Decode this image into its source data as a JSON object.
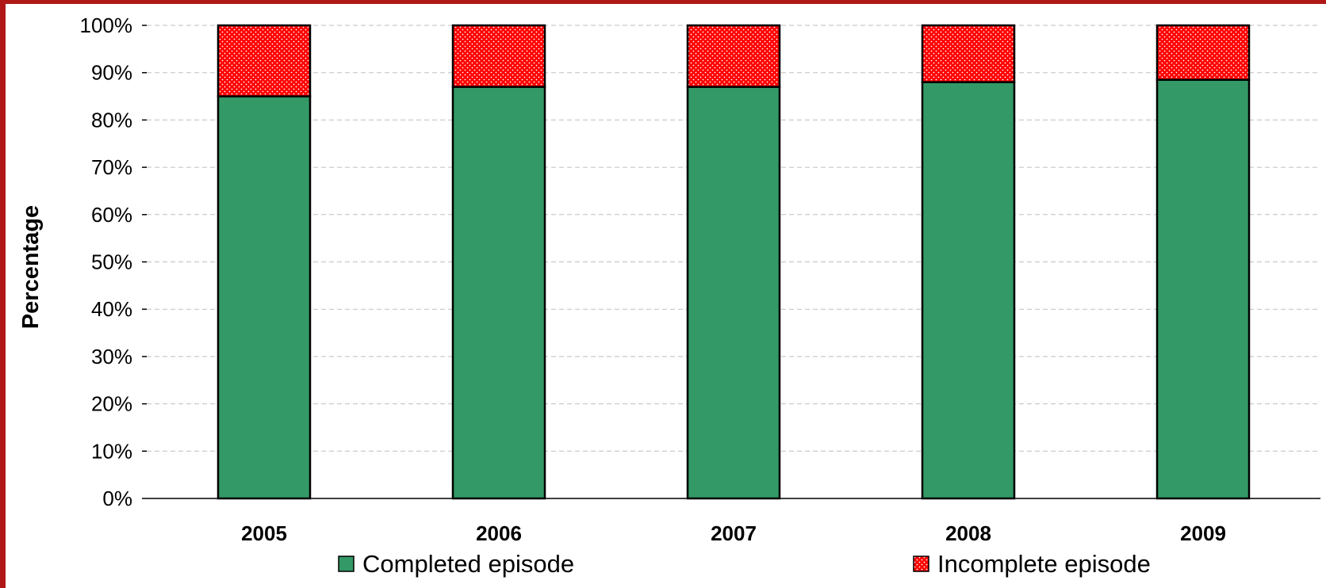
{
  "chart_data": {
    "type": "bar",
    "stacked": true,
    "categories": [
      "2005",
      "2006",
      "2007",
      "2008",
      "2009"
    ],
    "series": [
      {
        "name": "Completed episode",
        "values": [
          85,
          87,
          87,
          88,
          88.5
        ],
        "color": "#339966"
      },
      {
        "name": "Incomplete episode",
        "values": [
          15,
          13,
          13,
          12,
          11.5
        ],
        "color": "#ff0000",
        "pattern": "dotted"
      }
    ],
    "ylabel": "Percentage",
    "yticks": [
      "0%",
      "10%",
      "20%",
      "30%",
      "40%",
      "50%",
      "60%",
      "70%",
      "80%",
      "90%",
      "100%"
    ],
    "ylim": [
      0,
      100
    ],
    "grid": "horizontal dashed",
    "legend": "bottom",
    "frame_color": "#b01818"
  }
}
